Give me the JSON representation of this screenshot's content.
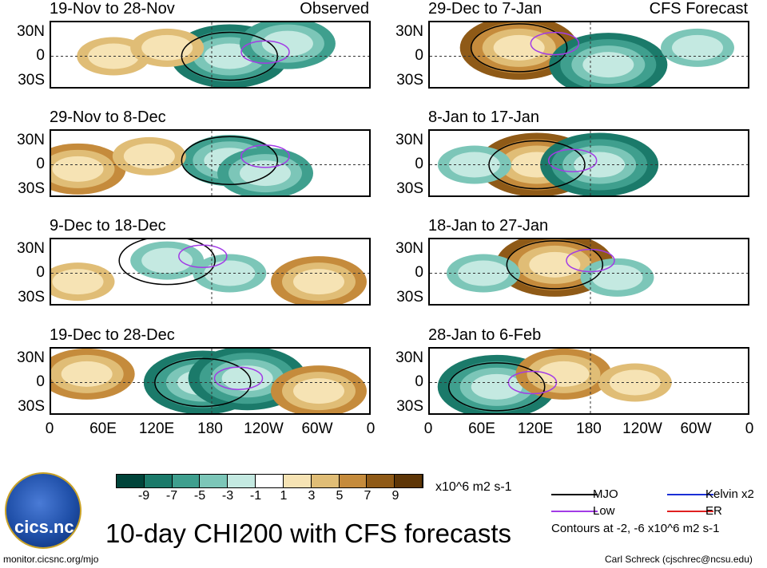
{
  "panels": [
    {
      "title": "19-Nov to 28-Nov",
      "tag": "Observed"
    },
    {
      "title": "29-Nov to 8-Dec",
      "tag": ""
    },
    {
      "title": "9-Dec to 18-Dec",
      "tag": ""
    },
    {
      "title": "19-Dec to 28-Dec",
      "tag": ""
    },
    {
      "title": "29-Dec to 7-Jan",
      "tag": "CFS Forecast"
    },
    {
      "title": "8-Jan to 17-Jan",
      "tag": ""
    },
    {
      "title": "18-Jan to 27-Jan",
      "tag": ""
    },
    {
      "title": "28-Jan to 6-Feb",
      "tag": ""
    }
  ],
  "lat_labels": [
    "30N",
    "0",
    "30S"
  ],
  "lon_labels": [
    "0",
    "60E",
    "120E",
    "180",
    "120W",
    "60W",
    "0"
  ],
  "colorbar": {
    "unit": "x10^6 m2 s-1",
    "labels": [
      "-9",
      "-7",
      "-5",
      "-3",
      "-1",
      "1",
      "3",
      "5",
      "7",
      "9"
    ],
    "colors": [
      "#00443a",
      "#1b7a6a",
      "#3f9f8e",
      "#7cc6b8",
      "#c4e9e1",
      "#ffffff",
      "#f6e3b4",
      "#e0bd76",
      "#c58b3c",
      "#8f5a17",
      "#5e3607"
    ]
  },
  "legend": [
    {
      "label": "MJO",
      "color": "#000000"
    },
    {
      "label": "Kelvin x2",
      "color": "#1a2fd6"
    },
    {
      "label": "Low",
      "color": "#a23be6"
    },
    {
      "label": "ER",
      "color": "#e02020"
    }
  ],
  "contours_note": "Contours at -2, -6 x10^6 m2 s-1",
  "main_title": "10-day CHI200 with CFS forecasts",
  "logo_text": "cics.nc",
  "footer_left": "monitor.cicsnc.org/mjo",
  "footer_right": "Carl Schreck (cjschrec@ncsu.edu)",
  "chart_data": {
    "type": "heatmap",
    "variable": "CHI200 (10-day mean)",
    "unit": "x10^6 m2 s-1",
    "lon_ticks": [
      "0",
      "60E",
      "120E",
      "180",
      "120W",
      "60W",
      "0"
    ],
    "lat_ticks": [
      "30N",
      "0",
      "30S"
    ],
    "levels": [
      -9,
      -7,
      -5,
      -3,
      -1,
      1,
      3,
      5,
      7,
      9
    ],
    "panels": [
      {
        "period": "19-Nov to 28-Nov",
        "source": "Observed",
        "anomalies": [
          {
            "lon": 200,
            "lat": 0,
            "value": -7
          },
          {
            "lon": 265,
            "lat": 15,
            "value": -5
          },
          {
            "lon": 70,
            "lat": 0,
            "value": 3
          },
          {
            "lon": 130,
            "lat": 10,
            "value": 3
          }
        ]
      },
      {
        "period": "29-Nov to 8-Dec",
        "source": "Observed",
        "anomalies": [
          {
            "lon": 200,
            "lat": 5,
            "value": -5
          },
          {
            "lon": 240,
            "lat": -10,
            "value": -5
          },
          {
            "lon": 30,
            "lat": -5,
            "value": 5
          },
          {
            "lon": 110,
            "lat": 10,
            "value": 3
          }
        ]
      },
      {
        "period": "9-Dec to 18-Dec",
        "source": "Observed",
        "anomalies": [
          {
            "lon": 130,
            "lat": 15,
            "value": -3
          },
          {
            "lon": 200,
            "lat": 0,
            "value": -3
          },
          {
            "lon": 300,
            "lat": -10,
            "value": 5
          },
          {
            "lon": 30,
            "lat": -10,
            "value": 3
          }
        ]
      },
      {
        "period": "19-Dec to 28-Dec",
        "source": "Observed",
        "anomalies": [
          {
            "lon": 170,
            "lat": 0,
            "value": -9
          },
          {
            "lon": 220,
            "lat": 5,
            "value": -7
          },
          {
            "lon": 40,
            "lat": 10,
            "value": 5
          },
          {
            "lon": 300,
            "lat": -10,
            "value": 5
          }
        ]
      },
      {
        "period": "29-Dec to 7-Jan",
        "source": "CFS Forecast",
        "anomalies": [
          {
            "lon": 100,
            "lat": 10,
            "value": 9
          },
          {
            "lon": 200,
            "lat": -10,
            "value": -9
          },
          {
            "lon": 300,
            "lat": 10,
            "value": -3
          }
        ]
      },
      {
        "period": "8-Jan to 17-Jan",
        "source": "CFS Forecast",
        "anomalies": [
          {
            "lon": 120,
            "lat": 0,
            "value": 9
          },
          {
            "lon": 190,
            "lat": 0,
            "value": -9
          },
          {
            "lon": 50,
            "lat": 0,
            "value": -3
          }
        ]
      },
      {
        "period": "18-Jan to 27-Jan",
        "source": "CFS Forecast",
        "anomalies": [
          {
            "lon": 140,
            "lat": 10,
            "value": 7
          },
          {
            "lon": 60,
            "lat": 0,
            "value": -3
          },
          {
            "lon": 210,
            "lat": -5,
            "value": -3
          }
        ]
      },
      {
        "period": "28-Jan to 6-Feb",
        "source": "CFS Forecast",
        "anomalies": [
          {
            "lon": 75,
            "lat": -5,
            "value": -9
          },
          {
            "lon": 150,
            "lat": 10,
            "value": 5
          },
          {
            "lon": 230,
            "lat": 0,
            "value": 3
          }
        ]
      }
    ]
  }
}
